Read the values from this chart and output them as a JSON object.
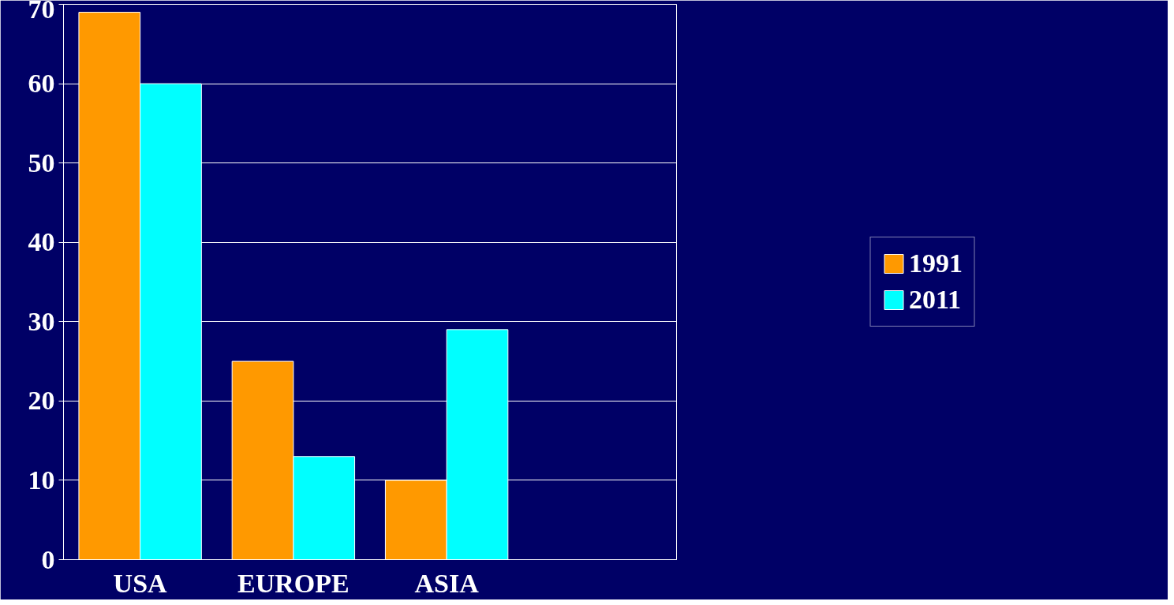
{
  "chart_data": {
    "type": "bar",
    "categories": [
      "USA",
      "EUROPE",
      "ASIA",
      null
    ],
    "series": [
      {
        "name": "1991",
        "color": "#ff9900",
        "values": [
          69,
          25,
          10,
          null
        ]
      },
      {
        "name": "2011",
        "color": "#00ffff",
        "values": [
          60,
          13,
          29,
          null
        ]
      }
    ],
    "ylim": [
      0,
      70
    ],
    "yticks": [
      0,
      10,
      20,
      30,
      40,
      50,
      60,
      70
    ],
    "grid": "y",
    "legend": "right"
  }
}
